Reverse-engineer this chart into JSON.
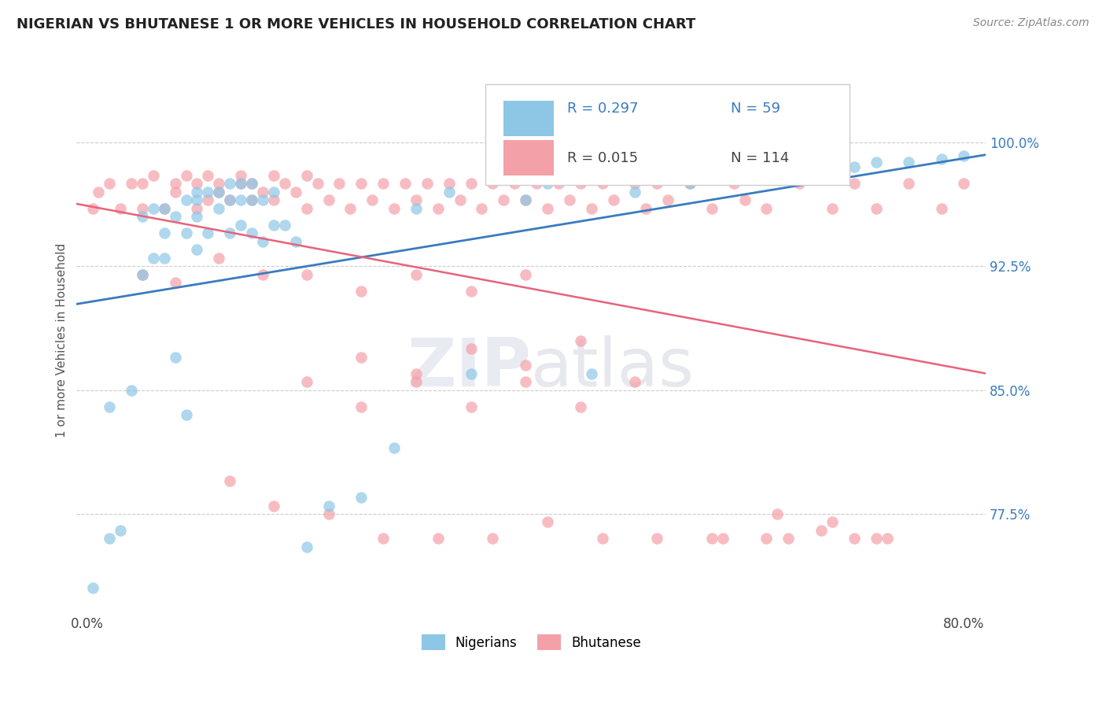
{
  "title": "NIGERIAN VS BHUTANESE 1 OR MORE VEHICLES IN HOUSEHOLD CORRELATION CHART",
  "source": "Source: ZipAtlas.com",
  "ylabel": "1 or more Vehicles in Household",
  "x_ticks": [
    0.0,
    0.1,
    0.2,
    0.3,
    0.4,
    0.5,
    0.6,
    0.7,
    0.8
  ],
  "x_tick_labels": [
    "0.0%",
    "",
    "",
    "",
    "",
    "",
    "",
    "",
    "80.0%"
  ],
  "y_ticks": [
    0.775,
    0.85,
    0.925,
    1.0
  ],
  "y_tick_labels": [
    "77.5%",
    "85.0%",
    "92.5%",
    "100.0%"
  ],
  "xlim": [
    -0.01,
    0.82
  ],
  "ylim": [
    0.715,
    1.045
  ],
  "nigerian_R": 0.297,
  "nigerian_N": 59,
  "bhutanese_R": 0.015,
  "bhutanese_N": 114,
  "nigerian_color": "#8ec6e6",
  "bhutanese_color": "#f4a0a8",
  "nigerian_line_color": "#3a7bbf",
  "bhutanese_line_color": "#e8637a",
  "watermark_color": "#d8dce8",
  "nigerian_x": [
    0.005,
    0.02,
    0.02,
    0.03,
    0.04,
    0.05,
    0.05,
    0.06,
    0.06,
    0.07,
    0.07,
    0.07,
    0.08,
    0.08,
    0.09,
    0.09,
    0.09,
    0.1,
    0.1,
    0.1,
    0.1,
    0.11,
    0.11,
    0.12,
    0.12,
    0.13,
    0.13,
    0.13,
    0.14,
    0.14,
    0.14,
    0.15,
    0.15,
    0.15,
    0.16,
    0.16,
    0.17,
    0.17,
    0.18,
    0.19,
    0.2,
    0.22,
    0.25,
    0.28,
    0.3,
    0.33,
    0.35,
    0.4,
    0.42,
    0.46,
    0.5,
    0.55,
    0.6,
    0.65,
    0.7,
    0.72,
    0.75,
    0.78,
    0.8
  ],
  "nigerian_y": [
    0.73,
    0.76,
    0.84,
    0.765,
    0.85,
    0.92,
    0.955,
    0.93,
    0.96,
    0.93,
    0.945,
    0.96,
    0.87,
    0.955,
    0.835,
    0.945,
    0.965,
    0.935,
    0.955,
    0.965,
    0.97,
    0.945,
    0.97,
    0.96,
    0.97,
    0.945,
    0.965,
    0.975,
    0.95,
    0.965,
    0.975,
    0.945,
    0.965,
    0.975,
    0.94,
    0.965,
    0.95,
    0.97,
    0.95,
    0.94,
    0.755,
    0.78,
    0.785,
    0.815,
    0.96,
    0.97,
    0.86,
    0.965,
    0.975,
    0.86,
    0.97,
    0.975,
    0.985,
    0.985,
    0.985,
    0.988,
    0.988,
    0.99,
    0.992
  ],
  "bhutanese_x": [
    0.005,
    0.01,
    0.02,
    0.03,
    0.04,
    0.05,
    0.05,
    0.06,
    0.07,
    0.08,
    0.08,
    0.09,
    0.1,
    0.1,
    0.11,
    0.11,
    0.12,
    0.12,
    0.13,
    0.14,
    0.14,
    0.15,
    0.15,
    0.16,
    0.17,
    0.17,
    0.18,
    0.19,
    0.2,
    0.2,
    0.21,
    0.22,
    0.23,
    0.24,
    0.25,
    0.26,
    0.27,
    0.28,
    0.29,
    0.3,
    0.31,
    0.32,
    0.33,
    0.34,
    0.35,
    0.36,
    0.37,
    0.38,
    0.39,
    0.4,
    0.41,
    0.42,
    0.43,
    0.44,
    0.45,
    0.46,
    0.47,
    0.48,
    0.5,
    0.51,
    0.52,
    0.53,
    0.55,
    0.57,
    0.59,
    0.6,
    0.62,
    0.65,
    0.68,
    0.7,
    0.72,
    0.75,
    0.78,
    0.8,
    0.05,
    0.08,
    0.12,
    0.16,
    0.2,
    0.25,
    0.3,
    0.35,
    0.4,
    0.45,
    0.25,
    0.3,
    0.35,
    0.4,
    0.45,
    0.5,
    0.2,
    0.25,
    0.3,
    0.35,
    0.4,
    0.13,
    0.17,
    0.22,
    0.27,
    0.32,
    0.37,
    0.42,
    0.47,
    0.52,
    0.57,
    0.62,
    0.67,
    0.72,
    0.63,
    0.68,
    0.73,
    0.58,
    0.64,
    0.7
  ],
  "bhutanese_y": [
    0.96,
    0.97,
    0.975,
    0.96,
    0.975,
    0.96,
    0.975,
    0.98,
    0.96,
    0.97,
    0.975,
    0.98,
    0.96,
    0.975,
    0.98,
    0.965,
    0.97,
    0.975,
    0.965,
    0.975,
    0.98,
    0.965,
    0.975,
    0.97,
    0.98,
    0.965,
    0.975,
    0.97,
    0.98,
    0.96,
    0.975,
    0.965,
    0.975,
    0.96,
    0.975,
    0.965,
    0.975,
    0.96,
    0.975,
    0.965,
    0.975,
    0.96,
    0.975,
    0.965,
    0.975,
    0.96,
    0.975,
    0.965,
    0.975,
    0.965,
    0.975,
    0.96,
    0.975,
    0.965,
    0.975,
    0.96,
    0.975,
    0.965,
    0.975,
    0.96,
    0.975,
    0.965,
    0.975,
    0.96,
    0.975,
    0.965,
    0.96,
    0.975,
    0.96,
    0.975,
    0.96,
    0.975,
    0.96,
    0.975,
    0.92,
    0.915,
    0.93,
    0.92,
    0.855,
    0.87,
    0.86,
    0.875,
    0.865,
    0.88,
    0.84,
    0.855,
    0.84,
    0.855,
    0.84,
    0.855,
    0.92,
    0.91,
    0.92,
    0.91,
    0.92,
    0.795,
    0.78,
    0.775,
    0.76,
    0.76,
    0.76,
    0.77,
    0.76,
    0.76,
    0.76,
    0.76,
    0.765,
    0.76,
    0.775,
    0.77,
    0.76,
    0.76,
    0.76,
    0.76
  ]
}
